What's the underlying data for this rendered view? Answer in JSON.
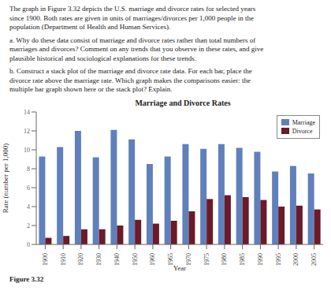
{
  "chart_data": {
    "type": "bar",
    "title": "Marriage and Divorce Rates",
    "x_label": "Year",
    "y_label": "Rate (number per 1,000)",
    "categories": [
      "1900",
      "1910",
      "1920",
      "1930",
      "1940",
      "1950",
      "1960",
      "1965",
      "1970",
      "1975",
      "1980",
      "1985",
      "1990",
      "1995",
      "2000",
      "2005"
    ],
    "series": [
      {
        "name": "Marriage",
        "color": "#6080bb",
        "values": [
          9.3,
          10.3,
          12.0,
          9.2,
          12.1,
          11.1,
          8.5,
          9.3,
          10.6,
          10.1,
          10.6,
          10.2,
          9.8,
          7.7,
          8.3,
          7.5
        ]
      },
      {
        "name": "Divorce",
        "color": "#6b1a28",
        "values": [
          0.7,
          0.9,
          1.6,
          1.6,
          2.0,
          2.6,
          2.2,
          2.5,
          3.5,
          4.8,
          5.2,
          5.0,
          4.7,
          4.0,
          4.1,
          3.7
        ]
      }
    ],
    "ylim": [
      0,
      14
    ],
    "yticks": [
      0,
      2,
      4,
      6,
      8,
      10,
      12,
      14
    ],
    "grid": false,
    "legend": "upper right",
    "annotations": [
      "The graph in Figure 3.32 depicts the U.S. marriage and divorce rates for selected years\nsince 1900. Both rates are given in units of marriages/divorces per 1,000 people in the\npopulation (Department of Health and Human Services).",
      "a. Why do these data consist of marriage and divorce rates rather than total numbers of\nmarriages and divorces? Comment on any trends that you observe in these rates, and give\nplausible historical and sociological explanations for these trends.",
      "b. Construct a stack plot of the marriage and divorce rate data. For each bar, place the\ndivorce rate above the marriage rate. Which graph makes the comparisons easier: the\nmultiple bar graph shown here or the stack plot? Explain.",
      "Figure 3.32"
    ]
  }
}
